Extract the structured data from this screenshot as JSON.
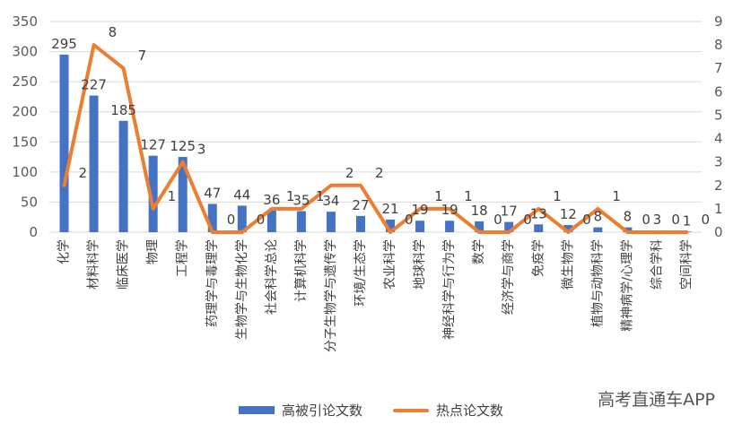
{
  "chart_data": {
    "type": "bar+line",
    "categories": [
      "化学",
      "材料科学",
      "临床医学",
      "物理",
      "工程学",
      "药理学与毒理学",
      "生物学与生物化学",
      "社会科学总论",
      "计算机科学",
      "分子生物学与遗传学",
      "环境/生态学",
      "农业科学",
      "地球科学",
      "神经科学与行为学",
      "数学",
      "经济学与商学",
      "免疫学",
      "微生物学",
      "植物与动物科学",
      "精神病学/心理学",
      "综合学科",
      "空间科学"
    ],
    "series": [
      {
        "name": "高被引论文数",
        "axis": "left",
        "kind": "bar",
        "color": "#4472c4",
        "values": [
          295,
          227,
          185,
          127,
          125,
          47,
          44,
          36,
          35,
          34,
          27,
          21,
          19,
          19,
          18,
          17,
          13,
          12,
          8,
          8,
          3,
          1
        ]
      },
      {
        "name": "热点论文数",
        "axis": "right",
        "kind": "line",
        "color": "#ed7d31",
        "values": [
          2,
          8,
          7,
          1,
          3,
          0,
          0,
          1,
          1,
          2,
          2,
          0,
          1,
          1,
          0,
          0,
          1,
          0,
          1,
          0,
          0,
          0
        ]
      }
    ],
    "ylim_left": [
      0,
      350
    ],
    "ylim_right": [
      0,
      9
    ],
    "yticks_left": [
      0,
      50,
      100,
      150,
      200,
      250,
      300,
      350
    ],
    "yticks_right": [
      0,
      1,
      2,
      3,
      4,
      5,
      6,
      7,
      8,
      9
    ],
    "grid": true,
    "legend_position": "bottom"
  },
  "watermark": "高考直通车APP"
}
